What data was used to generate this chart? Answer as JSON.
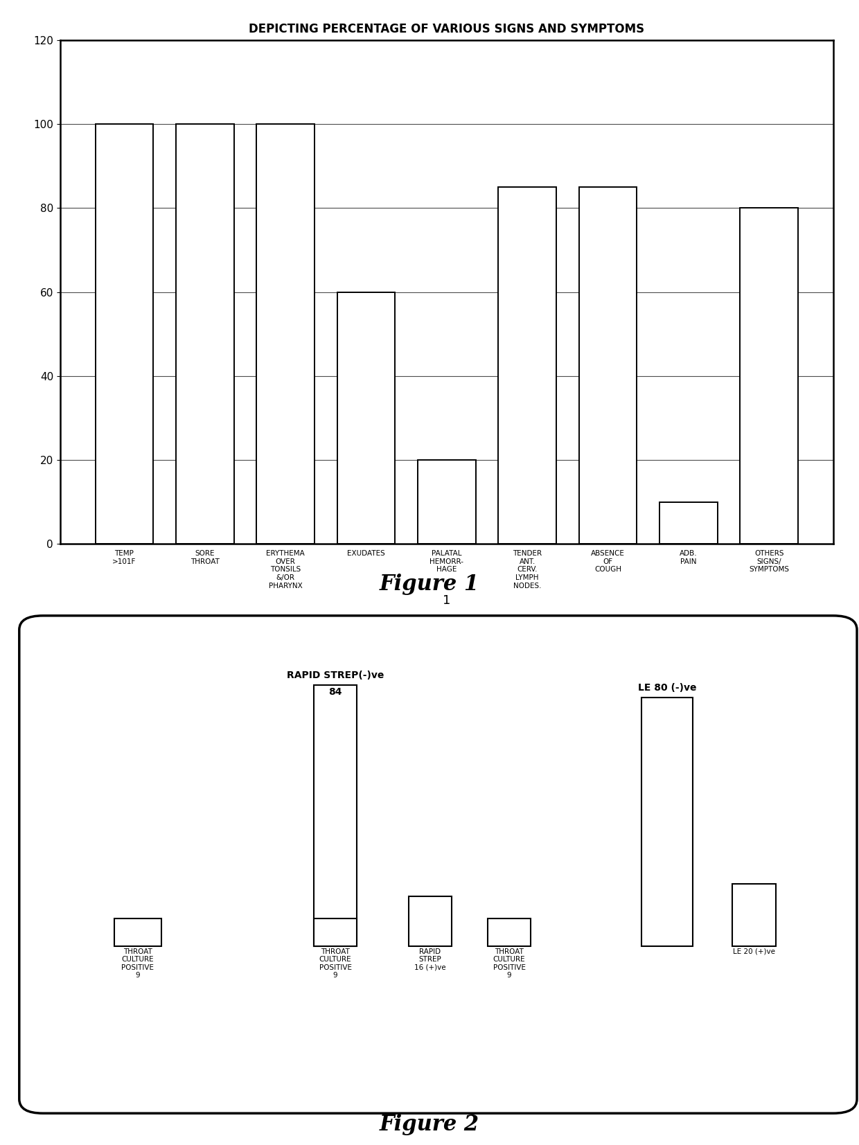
{
  "fig1": {
    "title": "DEPICTING PERCENTAGE OF VARIOUS SIGNS AND SYMPTOMS",
    "ylim": [
      0,
      120
    ],
    "yticks": [
      0,
      20,
      40,
      60,
      80,
      100,
      120
    ],
    "xlabel": "1",
    "bars": [
      {
        "label": "TEMP\n>101F",
        "value": 100
      },
      {
        "label": "SORE\nTHROAT",
        "value": 100
      },
      {
        "label": "ERYTHEMA\nOVER\nTONSILS\n&/OR\nPHARYNX",
        "value": 100
      },
      {
        "label": "EXUDATES",
        "value": 60
      },
      {
        "label": "PALATAL\nHEMORR-\nHAGE",
        "value": 20
      },
      {
        "label": "TENDER\nANT.\nCERV.\nLYMPH\nNODES.",
        "value": 85
      },
      {
        "label": "ABSENCE\nOF\nCOUGH",
        "value": 85
      },
      {
        "label": "ADB.\nPAIN",
        "value": 10
      },
      {
        "label": "OTHERS\nSIGNS/\nSYMPTOMS",
        "value": 80
      }
    ]
  },
  "fig1_caption": "Figure 1",
  "fig2_caption": "Figure 2",
  "fig2": {
    "bars_small": [
      {
        "x": 0,
        "value": 9,
        "label": "THROAT\nCULTURE\nPOSITIVE\n9"
      },
      {
        "x": 1,
        "value": 9,
        "label": "THROAT\nCULTURE\nPOSITIVE\n9"
      },
      {
        "x": 2,
        "value": 16,
        "label": "RAPID\nSTREP\n16 (+)ve"
      },
      {
        "x": 3,
        "value": 9,
        "label": "THROAT\nCULTURE\nPOSITIVE\n9"
      },
      {
        "x": 4,
        "value": 20,
        "label": "LE 20 (+)ve"
      }
    ],
    "bars_tall": [
      {
        "x": 1,
        "value": 84,
        "group_label": "RAPID STREP(-)ve",
        "val_label": "84"
      },
      {
        "x": 4,
        "value": 80,
        "group_label": "LE 80 (-)ve",
        "val_label": ""
      }
    ]
  }
}
